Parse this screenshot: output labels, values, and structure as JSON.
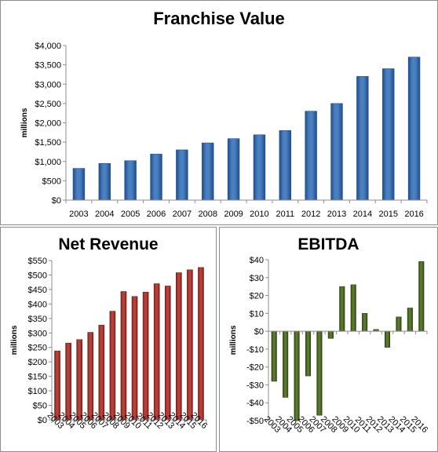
{
  "colors": {
    "franchise_bar": "#4a7fc0",
    "franchise_bar_dark": "#1f4e8c",
    "revenue_bar": "#b8413b",
    "revenue_bar_dark": "#7a1f1a",
    "ebitda_bar": "#5b7a2e",
    "ebitda_bar_dark": "#2e4214",
    "axis": "#8c8c8c",
    "grid": "#d9d9d9"
  },
  "chart_data": [
    {
      "id": "franchise",
      "type": "bar",
      "title": "Franchise Value",
      "ylabel": "millions",
      "xlabel": "",
      "categories": [
        "2003",
        "2004",
        "2005",
        "2006",
        "2007",
        "2008",
        "2009",
        "2010",
        "2011",
        "2012",
        "2013",
        "2014",
        "2015",
        "2016"
      ],
      "values": [
        820,
        950,
        1020,
        1190,
        1300,
        1480,
        1590,
        1690,
        1800,
        2300,
        2500,
        3200,
        3400,
        3700
      ],
      "ylim": [
        0,
        4000
      ],
      "yticks": [
        0,
        500,
        1000,
        1500,
        2000,
        2500,
        3000,
        3500,
        4000
      ],
      "ytick_labels": [
        "$0",
        "$500",
        "$1,000",
        "$1,500",
        "$2,000",
        "$2,500",
        "$3,000",
        "$3,500",
        "$4,000"
      ],
      "grid": false,
      "legend": "none"
    },
    {
      "id": "revenue",
      "type": "bar",
      "title": "Net Revenue",
      "ylabel": "millions",
      "xlabel": "",
      "categories": [
        "2003",
        "2004",
        "2005",
        "2006",
        "2007",
        "2008",
        "2009",
        "2010",
        "2011",
        "2012",
        "2013",
        "2014",
        "2015",
        "2016"
      ],
      "values": [
        238,
        265,
        277,
        302,
        327,
        375,
        443,
        426,
        441,
        470,
        462,
        508,
        518,
        526
      ],
      "ylim": [
        0,
        550
      ],
      "yticks": [
        0,
        50,
        100,
        150,
        200,
        250,
        300,
        350,
        400,
        450,
        500,
        550
      ],
      "ytick_labels": [
        "$0",
        "$50",
        "$100",
        "$150",
        "$200",
        "$250",
        "$300",
        "$350",
        "$400",
        "$450",
        "$500",
        "$550"
      ],
      "grid": false,
      "legend": "none"
    },
    {
      "id": "ebitda",
      "type": "bar",
      "title": "EBITDA",
      "ylabel": "millions",
      "xlabel": "",
      "categories": [
        "2003",
        "2004",
        "2005",
        "2006",
        "2007",
        "2008",
        "2009",
        "2010",
        "2011",
        "2012",
        "2013",
        "2014",
        "2015",
        "2016"
      ],
      "values": [
        -28,
        -37,
        -50,
        -25,
        -47,
        -4,
        25,
        26,
        10,
        1,
        -9,
        8,
        13,
        39
      ],
      "ylim": [
        -50,
        40
      ],
      "yticks": [
        -50,
        -40,
        -30,
        -20,
        -10,
        0,
        10,
        20,
        30,
        40
      ],
      "ytick_labels": [
        "-$50",
        "-$40",
        "-$30",
        "-$20",
        "-$10",
        "$0",
        "$10",
        "$20",
        "$30",
        "$40"
      ],
      "grid": false,
      "legend": "none"
    }
  ]
}
